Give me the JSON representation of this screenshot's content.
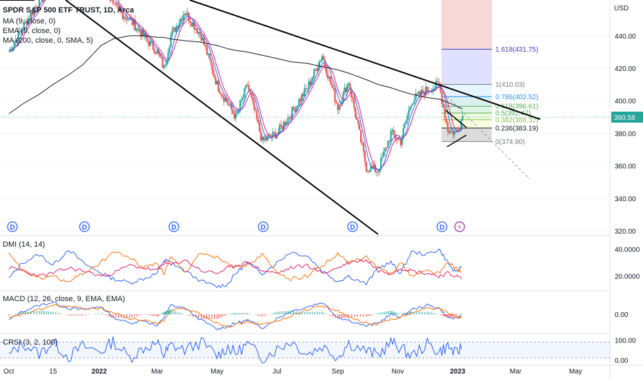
{
  "header": {
    "symbol_title": "SPDR S&P 500 ETF TRUST, 1D, Arca",
    "indicator_ma": "MA (9, close, 0)",
    "indicator_ema": "EMA (9, close, 0)",
    "indicator_ma200": "MA (200, close, 0, SMA, 5)"
  },
  "currency_label": "USD",
  "last_price_label": "390.58",
  "colors": {
    "up": "#26a69a",
    "down": "#ef5350",
    "ma_line": "#e91e63",
    "ema_line": "#2962ff",
    "ma200_line": "#131722",
    "dmi_plus": "#2962ff",
    "dmi_minus": "#ff6d00",
    "adx": "#e91e63",
    "macd": "#2962ff",
    "signal": "#ff6d00",
    "crsi": "#2962ff",
    "dividend_marker": "#2962ff",
    "split_marker": "#9c27b0"
  },
  "chart_data": [
    {
      "type": "line",
      "name": "price-pane",
      "title": "SPDR S&P 500 ETF TRUST, 1D, Arca",
      "ylabel": "USD",
      "y_ticks": [
        "320.00",
        "340.00",
        "360.00",
        "380.00",
        "400.00",
        "420.00",
        "440.00"
      ],
      "ylim": [
        317,
        462
      ],
      "x_ticks": [
        "Oct",
        "15",
        "2022",
        "Mar",
        "May",
        "Jul",
        "Sep",
        "Nov",
        "2023",
        "Mar",
        "May"
      ],
      "x": [
        "2021-10-01",
        "2021-10-15",
        "2021-11-01",
        "2021-11-15",
        "2021-12-01",
        "2021-12-15",
        "2022-01-03",
        "2022-01-15",
        "2022-02-01",
        "2022-02-15",
        "2022-03-01",
        "2022-03-08",
        "2022-03-15",
        "2022-03-29",
        "2022-04-15",
        "2022-05-01",
        "2022-05-12",
        "2022-05-20",
        "2022-06-01",
        "2022-06-16",
        "2022-07-01",
        "2022-07-15",
        "2022-08-01",
        "2022-08-16",
        "2022-09-01",
        "2022-09-12",
        "2022-09-30",
        "2022-10-12",
        "2022-10-25",
        "2022-11-04",
        "2022-11-15",
        "2022-12-01",
        "2022-12-13",
        "2022-12-22",
        "2022-12-30",
        "2023-01-06"
      ],
      "series": [
        {
          "values": [
            430,
            445,
            462,
            470,
            465,
            470,
            478,
            458,
            450,
            440,
            430,
            420,
            440,
            455,
            440,
            410,
            398,
            390,
            410,
            375,
            380,
            392,
            408,
            428,
            396,
            412,
            359,
            357,
            380,
            375,
            400,
            407,
            410,
            382,
            380,
            390.58
          ]
        }
      ],
      "ma200": [
        392,
        398,
        404,
        410,
        416,
        422,
        434,
        438,
        440,
        440,
        439,
        439,
        438,
        437,
        436,
        434,
        432,
        431,
        430,
        428,
        426,
        424,
        423,
        421,
        419,
        417,
        413,
        410,
        408,
        406,
        404,
        402,
        401,
        399,
        397,
        395
      ],
      "dividend_markers": [
        "D",
        "D",
        "D",
        "D",
        "D",
        "D"
      ],
      "split_marker": "⚡",
      "fibonacci": {
        "levels": [
          {
            "ratio": "1.618",
            "price": 431.75,
            "label": "1.618(431.75)"
          },
          {
            "ratio": "1",
            "price": 410.03,
            "label": "1(410.03)"
          },
          {
            "ratio": "0.786",
            "price": 402.52,
            "label": "0.786(402.52)"
          },
          {
            "ratio": "0.618",
            "price": 396.61,
            "label": "0.618(396.61)"
          },
          {
            "ratio": "0.5",
            "price": 392.47,
            "label": "0.5(392.47)"
          },
          {
            "ratio": "0.382",
            "price": 388.32,
            "label": "0.382(388.32)"
          },
          {
            "ratio": "0.236",
            "price": 383.19,
            "label": "0.236(383.19)"
          },
          {
            "ratio": "0",
            "price": 374.9,
            "label": "0(374.90)"
          }
        ]
      }
    },
    {
      "type": "line",
      "name": "dmi-pane",
      "title": "DMI (14, 14)",
      "y_ticks": [
        "20.0000",
        "40.0000"
      ],
      "ylim": [
        10,
        48
      ],
      "series": [
        {
          "name": "+DI",
          "values": [
            18,
            30,
            36,
            28,
            40,
            30,
            22,
            18,
            15,
            18,
            22,
            32,
            30,
            24,
            16,
            12,
            14,
            22,
            30,
            22,
            30,
            38,
            35,
            24,
            16,
            20,
            14,
            26,
            30,
            22,
            38,
            36,
            40,
            30,
            22,
            28
          ]
        },
        {
          "name": "-DI",
          "values": [
            36,
            24,
            18,
            20,
            15,
            22,
            30,
            38,
            34,
            26,
            30,
            22,
            34,
            22,
            38,
            34,
            30,
            26,
            28,
            36,
            22,
            18,
            20,
            28,
            36,
            30,
            34,
            26,
            22,
            30,
            20,
            24,
            22,
            30,
            26,
            22
          ]
        },
        {
          "name": "ADX",
          "values": [
            26,
            24,
            20,
            22,
            26,
            24,
            20,
            22,
            28,
            26,
            24,
            30,
            28,
            32,
            24,
            22,
            26,
            28,
            30,
            24,
            22,
            26,
            28,
            22,
            26,
            30,
            32,
            24,
            22,
            26,
            24,
            22,
            20,
            22,
            20,
            18
          ]
        }
      ]
    },
    {
      "type": "line",
      "name": "macd-pane",
      "title": "MACD (12, 26, close, 9, EMA, EMA)",
      "y_ticks": [
        "0.00"
      ],
      "ylim": [
        -12,
        12
      ],
      "series": [
        {
          "name": "MACD",
          "values": [
            -4,
            2,
            6,
            8,
            4,
            3,
            5,
            -2,
            -6,
            -4,
            -8,
            -2,
            6,
            4,
            -4,
            -10,
            -8,
            -6,
            -4,
            -9,
            -3,
            2,
            5,
            8,
            -2,
            -4,
            -8,
            -6,
            0,
            -2,
            3,
            6,
            4,
            -2,
            -3,
            -1
          ]
        },
        {
          "name": "Signal",
          "values": [
            -3,
            0,
            3,
            6,
            5,
            4,
            4,
            1,
            -3,
            -4,
            -6,
            -4,
            2,
            4,
            0,
            -6,
            -8,
            -7,
            -5,
            -7,
            -5,
            -1,
            3,
            6,
            2,
            -2,
            -6,
            -7,
            -3,
            -2,
            1,
            4,
            4,
            1,
            -2,
            -2
          ]
        }
      ]
    },
    {
      "type": "line",
      "name": "crsi-pane",
      "title": "CRSI (3, 2, 100)",
      "y_ticks": [
        "0.00",
        "100.00"
      ],
      "ylim": [
        -20,
        120
      ],
      "series": [
        {
          "name": "CRSI",
          "values": [
            20,
            85,
            30,
            90,
            15,
            70,
            40,
            95,
            10,
            60,
            85,
            25,
            75,
            50,
            90,
            20,
            65,
            35,
            80,
            10,
            55,
            95,
            30,
            70,
            15,
            85,
            45,
            25,
            90,
            60,
            20,
            80,
            40,
            70,
            30,
            75
          ]
        }
      ]
    }
  ]
}
